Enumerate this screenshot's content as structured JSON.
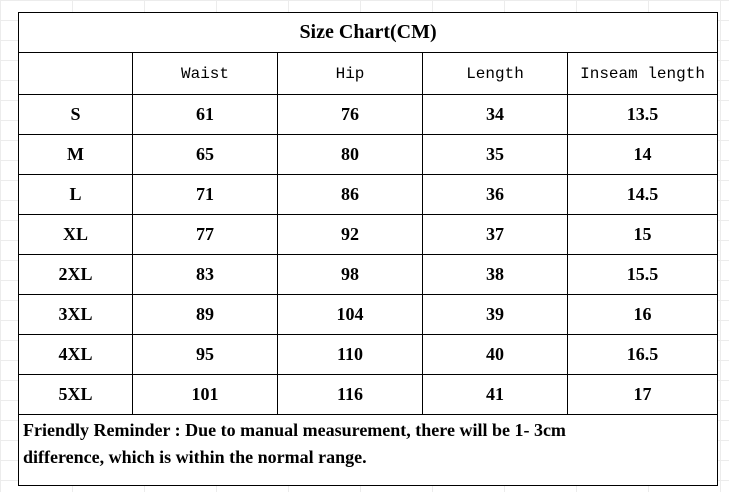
{
  "table": {
    "title": "Size Chart(CM)",
    "header": [
      "Waist",
      "Hip",
      "Length",
      "Inseam length"
    ],
    "rows": [
      [
        "S",
        61,
        76,
        34,
        13.5
      ],
      [
        "M",
        65,
        80,
        35,
        14
      ],
      [
        "L",
        71,
        86,
        36,
        14.5
      ],
      [
        "XL",
        77,
        92,
        37,
        15
      ],
      [
        "2XL",
        83,
        98,
        38,
        15.5
      ],
      [
        "3XL",
        89,
        104,
        39,
        16
      ],
      [
        "4XL",
        95,
        110,
        40,
        16.5
      ],
      [
        "5XL",
        101,
        116,
        41,
        17
      ]
    ],
    "note": "Friendly Reminder : Due to manual measurement, there will be 1- 3cm difference, which is within the normal range."
  }
}
